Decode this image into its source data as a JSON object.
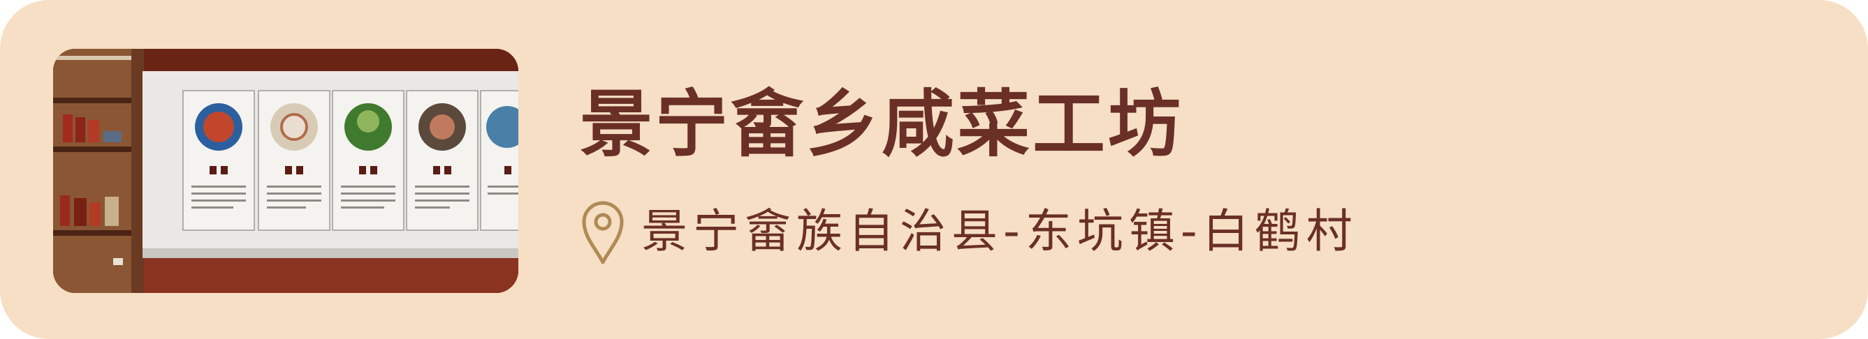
{
  "venue": {
    "title": "景宁畲乡咸菜工坊",
    "address": "景宁畲族自治县-东坑镇-白鹤村",
    "icon": "location-pin-icon"
  },
  "colors": {
    "card_background": "#f6dfc4",
    "text": "#6a2f27",
    "pin_stroke": "#b08a56"
  }
}
